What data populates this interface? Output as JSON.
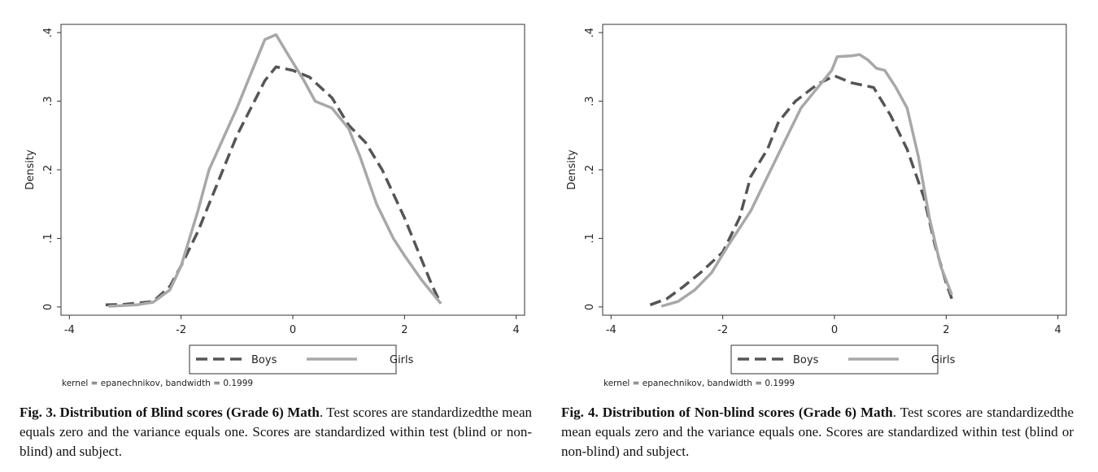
{
  "chart_data": [
    {
      "type": "line",
      "y_label": "Density",
      "note": "kernel = epanechnikov, bandwidth = 0.1999",
      "caption_label": "Fig. 3. Distribution of Blind scores (Grade 6) Math",
      "caption_text": ". Test scores are standardizedthe mean equals zero and the variance equals one. Scores are standardized within test (blind or non-blind) and subject.",
      "xlim": [
        -4.15,
        4.15
      ],
      "xticks": [
        -4,
        -2,
        0,
        2,
        4
      ],
      "ylim": [
        -0.012,
        0.412
      ],
      "yticks": [
        0,
        {
          "value": 0.1,
          "label": ".1"
        },
        {
          "value": 0.2,
          "label": ".2"
        },
        {
          "value": 0.3,
          "label": ".3"
        },
        {
          "value": 0.4,
          "label": ".4"
        }
      ],
      "series": [
        {
          "name": "Boys",
          "color": "#555555",
          "dashed": true,
          "x": [
            -3.35,
            -3,
            -2.5,
            -2.2,
            -2,
            -1.7,
            -1.5,
            -1,
            -0.5,
            -0.3,
            0,
            0.3,
            0.7,
            1,
            1.3,
            1.6,
            2,
            2.3,
            2.5,
            2.65
          ],
          "values": [
            0.003,
            0.004,
            0.008,
            0.03,
            0.06,
            0.11,
            0.15,
            0.25,
            0.33,
            0.35,
            0.345,
            0.335,
            0.305,
            0.265,
            0.24,
            0.2,
            0.13,
            0.07,
            0.03,
            0.005
          ]
        },
        {
          "name": "Girls",
          "color": "#a8a8a8",
          "dashed": false,
          "x": [
            -3.3,
            -2.8,
            -2.5,
            -2.2,
            -2,
            -1.7,
            -1.5,
            -1,
            -0.7,
            -0.5,
            -0.3,
            -0.1,
            0.2,
            0.4,
            0.7,
            1,
            1.2,
            1.5,
            1.8,
            2,
            2.3,
            2.5,
            2.65
          ],
          "values": [
            0.001,
            0.003,
            0.007,
            0.025,
            0.06,
            0.14,
            0.2,
            0.29,
            0.35,
            0.39,
            0.397,
            0.37,
            0.33,
            0.3,
            0.29,
            0.26,
            0.22,
            0.15,
            0.1,
            0.075,
            0.04,
            0.02,
            0.005
          ]
        }
      ]
    },
    {
      "type": "line",
      "y_label": "Density",
      "note": "kernel = epanechnikov, bandwidth = 0.1999",
      "caption_label": "Fig. 4. Distribution of Non-blind scores (Grade 6) Math",
      "caption_text": ". Test scores are standardizedthe mean equals zero and the variance equals one. Scores are standardized within test (blind or non-blind) and subject.",
      "xlim": [
        -4.15,
        4.15
      ],
      "xticks": [
        -4,
        -2,
        0,
        2,
        4
      ],
      "ylim": [
        -0.012,
        0.412
      ],
      "yticks": [
        0,
        {
          "value": 0.1,
          "label": ".1"
        },
        {
          "value": 0.2,
          "label": ".2"
        },
        {
          "value": 0.3,
          "label": ".3"
        },
        {
          "value": 0.4,
          "label": ".4"
        }
      ],
      "series": [
        {
          "name": "Boys",
          "color": "#555555",
          "dashed": true,
          "x": [
            -3.3,
            -3,
            -2.7,
            -2.4,
            -2,
            -1.7,
            -1.5,
            -1.2,
            -1,
            -0.7,
            -0.3,
            0,
            0.3,
            0.7,
            1,
            1.3,
            1.6,
            1.8,
            2,
            2.1
          ],
          "values": [
            0.003,
            0.012,
            0.03,
            0.05,
            0.08,
            0.13,
            0.19,
            0.23,
            0.27,
            0.3,
            0.325,
            0.337,
            0.327,
            0.32,
            0.28,
            0.23,
            0.16,
            0.09,
            0.035,
            0.012
          ]
        },
        {
          "name": "Girls",
          "color": "#a8a8a8",
          "dashed": false,
          "x": [
            -3.1,
            -2.8,
            -2.5,
            -2.2,
            -1.9,
            -1.5,
            -1.2,
            -0.9,
            -0.6,
            -0.3,
            -0.05,
            0.05,
            0.3,
            0.45,
            0.6,
            0.75,
            0.9,
            1.1,
            1.3,
            1.5,
            1.7,
            1.9,
            2.1
          ],
          "values": [
            0.001,
            0.008,
            0.025,
            0.05,
            0.09,
            0.14,
            0.19,
            0.24,
            0.29,
            0.32,
            0.345,
            0.365,
            0.366,
            0.368,
            0.36,
            0.348,
            0.345,
            0.32,
            0.29,
            0.22,
            0.13,
            0.06,
            0.018
          ]
        }
      ]
    }
  ]
}
